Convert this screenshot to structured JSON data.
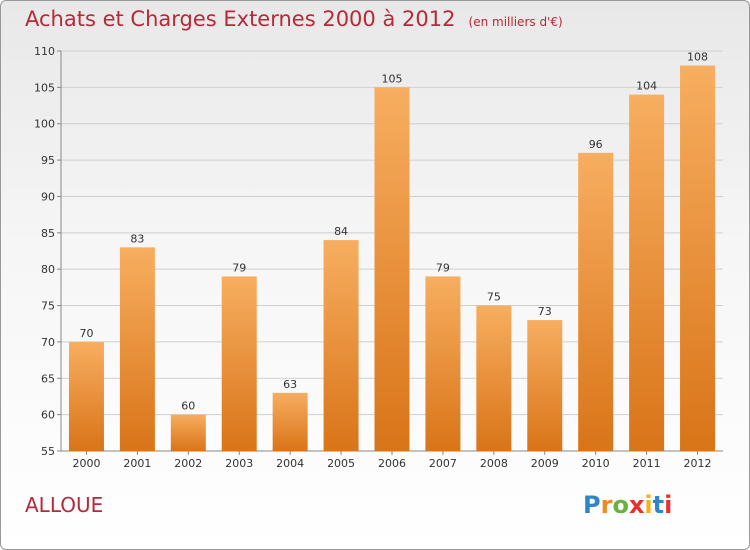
{
  "chart_data": {
    "type": "bar",
    "title": "Achats et Charges Externes 2000 à 2012",
    "subtitle": "(en milliers d'€)",
    "categories": [
      "2000",
      "2001",
      "2002",
      "2003",
      "2004",
      "2005",
      "2006",
      "2007",
      "2008",
      "2009",
      "2010",
      "2011",
      "2012"
    ],
    "values": [
      70,
      83,
      60,
      79,
      63,
      84,
      105,
      79,
      75,
      73,
      96,
      104,
      108
    ],
    "ylim": [
      55,
      110
    ],
    "yticks": [
      55,
      60,
      65,
      70,
      75,
      80,
      85,
      90,
      95,
      100,
      105,
      110
    ],
    "grid": true,
    "bar_color": "#f0943a",
    "bar_color_light": "#f7ae60",
    "bar_color_dark": "#d97418"
  },
  "location_label": "ALLOUE",
  "logo": {
    "letters": [
      "P",
      "r",
      "o",
      "x",
      "i",
      "t",
      "i"
    ],
    "colors": [
      "#2e86c8",
      "#f08a1c",
      "#6ab23e",
      "#e8312f",
      "#f0b31c",
      "#2e86c8",
      "#e8312f"
    ]
  }
}
